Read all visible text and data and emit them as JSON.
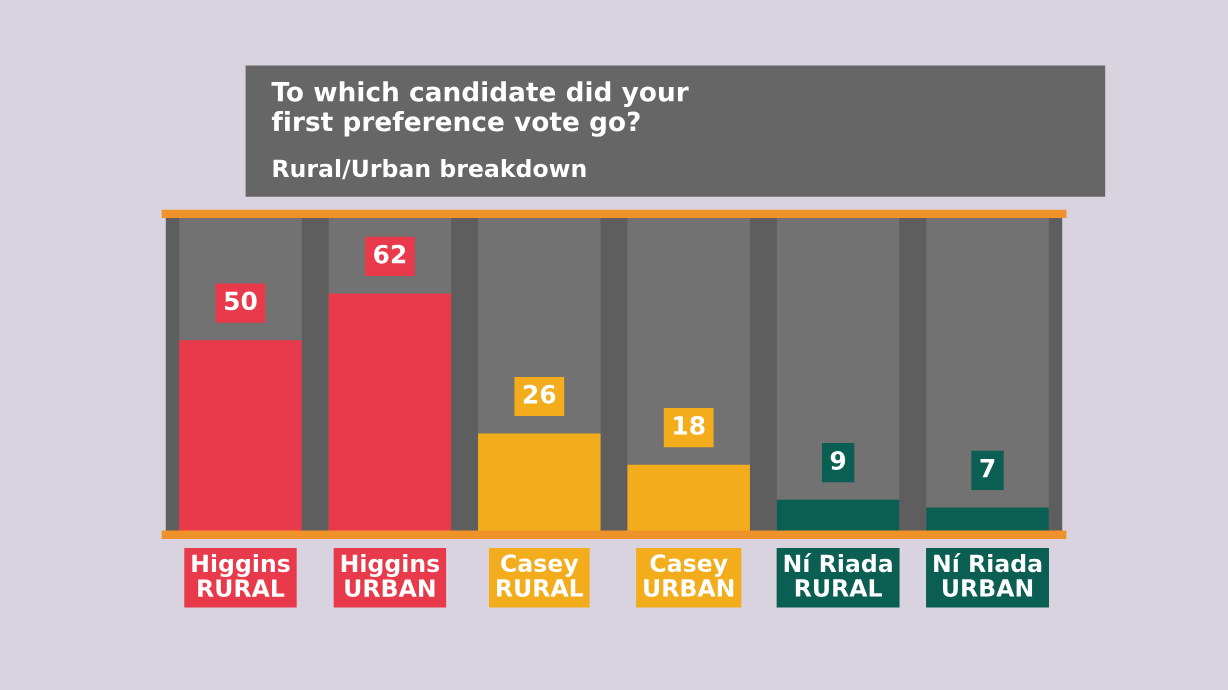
{
  "chart_data": {
    "type": "bar",
    "title": "To which candidate did your\nfirst preference vote go?",
    "subtitle": "Rural/Urban breakdown",
    "categories": [
      "Higgins\nRURAL",
      "Higgins\nURBAN",
      "Casey\nRURAL",
      "Casey\nURBAN",
      "Ní Riada\nRURAL",
      "Ní Riada\nURBAN"
    ],
    "values": [
      50,
      62,
      26,
      18,
      9,
      7
    ],
    "colors": [
      "#e83a4a",
      "#e83a4a",
      "#f2ac1c",
      "#f2ac1c",
      "#0b5e52",
      "#0b5e52"
    ],
    "data_labels": true
  }
}
